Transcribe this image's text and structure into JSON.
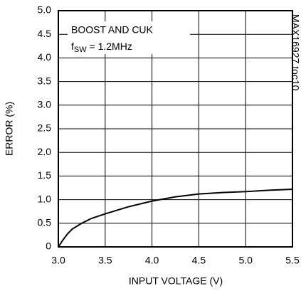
{
  "chart_data": {
    "type": "line",
    "x_label": "INPUT VOLTAGE (V)",
    "y_label": "ERROR (%)",
    "annotation": "BOOST AND CUK",
    "annotation_2": {
      "main": "f",
      "sub": "SW",
      "rest": " = 1.2MHz"
    },
    "side_label": "MAX16927 toc10",
    "x": [
      3.0,
      3.05,
      3.1,
      3.15,
      3.25,
      3.35,
      3.5,
      3.75,
      4.0,
      4.25,
      4.5,
      4.75,
      5.0,
      5.25,
      5.5
    ],
    "series": [
      {
        "color": "#000000",
        "values": [
          0,
          0.15,
          0.28,
          0.38,
          0.5,
          0.6,
          0.7,
          0.85,
          0.97,
          1.06,
          1.12,
          1.15,
          1.17,
          1.2,
          1.22
        ]
      }
    ],
    "xlim": [
      3.0,
      5.5
    ],
    "xticks": [
      {
        "value": 3,
        "label": "3.0"
      },
      3.5,
      {
        "value": 4,
        "label": "4.0"
      },
      4.5,
      {
        "value": 5,
        "label": "5.0"
      },
      5.5
    ],
    "ylim": [
      0,
      5.0
    ],
    "yticks": [
      0,
      0.5,
      {
        "value": 1,
        "label": "1.0"
      },
      1.5,
      {
        "value": 2,
        "label": "2.0"
      },
      2.5,
      {
        "value": 3,
        "label": "3.0"
      },
      3.5,
      {
        "value": 4,
        "label": "4.0"
      },
      4.5,
      {
        "value": 5,
        "label": "5.0"
      }
    ],
    "grid": true
  }
}
